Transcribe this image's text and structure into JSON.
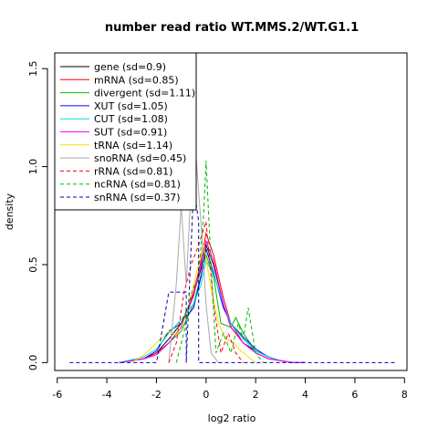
{
  "chart_data": {
    "type": "line",
    "title": "number read ratio WT.MMS.2/WT.G1.1",
    "xlabel": "log2 ratio",
    "ylabel": "density",
    "xlim": [
      -6.1,
      8.1
    ],
    "ylim": [
      -0.04,
      1.58
    ],
    "xticks": [
      -6,
      -4,
      -2,
      0,
      2,
      4,
      6,
      8
    ],
    "yticks": [
      0.0,
      0.5,
      1.0,
      1.5
    ],
    "ytick_labels": [
      "0.0",
      "0.5",
      "1.0",
      "1.5"
    ],
    "legend_position": "top-left",
    "series": [
      {
        "name": "gene (sd=0.9)",
        "color": "#000000",
        "dash": "solid",
        "x": [
          -3.5,
          -2.5,
          -2,
          -1.5,
          -1,
          -0.5,
          -0.2,
          0,
          0.3,
          0.7,
          1,
          1.5,
          2,
          2.5,
          3,
          3.5,
          4
        ],
        "y": [
          0,
          0.02,
          0.05,
          0.12,
          0.2,
          0.35,
          0.48,
          0.6,
          0.5,
          0.3,
          0.18,
          0.1,
          0.06,
          0.03,
          0.01,
          0,
          0
        ]
      },
      {
        "name": "mRNA (sd=0.85)",
        "color": "#ff0000",
        "dash": "solid",
        "x": [
          -3.5,
          -2.5,
          -2,
          -1.5,
          -1,
          -0.5,
          -0.2,
          0,
          0.3,
          0.7,
          1,
          1.5,
          2,
          2.5,
          3,
          3.5,
          4
        ],
        "y": [
          0,
          0.02,
          0.05,
          0.1,
          0.18,
          0.36,
          0.52,
          0.66,
          0.55,
          0.33,
          0.2,
          0.1,
          0.05,
          0.02,
          0.01,
          0,
          0
        ]
      },
      {
        "name": "divergent (sd=1.11)",
        "color": "#00bb00",
        "dash": "solid",
        "x": [
          -3.5,
          -2.5,
          -2,
          -1.5,
          -1,
          -0.5,
          -0.2,
          0,
          0.3,
          0.6,
          1,
          1.2,
          1.5,
          2,
          2.5,
          3,
          3.5,
          4
        ],
        "y": [
          0,
          0.02,
          0.04,
          0.1,
          0.16,
          0.3,
          0.45,
          0.55,
          0.44,
          0.2,
          0.18,
          0.23,
          0.15,
          0.06,
          0.03,
          0.01,
          0,
          0
        ]
      },
      {
        "name": "XUT (sd=1.05)",
        "color": "#0000ff",
        "dash": "solid",
        "x": [
          -3.5,
          -2.5,
          -2,
          -1.5,
          -1,
          -0.5,
          -0.2,
          0,
          0.3,
          0.7,
          1,
          1.5,
          2,
          2.5,
          3,
          3.5,
          4
        ],
        "y": [
          0,
          0.02,
          0.06,
          0.16,
          0.2,
          0.28,
          0.44,
          0.58,
          0.46,
          0.28,
          0.2,
          0.13,
          0.07,
          0.03,
          0.01,
          0,
          0
        ]
      },
      {
        "name": "CUT (sd=1.08)",
        "color": "#00dddd",
        "dash": "solid",
        "x": [
          -3.5,
          -2.5,
          -2,
          -1.5,
          -1,
          -0.5,
          -0.2,
          0,
          0.3,
          0.7,
          1,
          1.5,
          2,
          2.5,
          3,
          3.5,
          4
        ],
        "y": [
          0,
          0.03,
          0.07,
          0.15,
          0.22,
          0.3,
          0.4,
          0.52,
          0.45,
          0.3,
          0.2,
          0.12,
          0.06,
          0.03,
          0.01,
          0,
          0
        ]
      },
      {
        "name": "SUT (sd=0.91)",
        "color": "#ff00ff",
        "dash": "solid",
        "x": [
          -3.5,
          -2.5,
          -2,
          -1.5,
          -1,
          -0.5,
          -0.2,
          0,
          0.3,
          0.7,
          1,
          1.5,
          2,
          2.5,
          3,
          3.5,
          4
        ],
        "y": [
          0,
          0.02,
          0.04,
          0.1,
          0.18,
          0.34,
          0.5,
          0.62,
          0.52,
          0.3,
          0.18,
          0.1,
          0.05,
          0.02,
          0.01,
          0,
          0
        ]
      },
      {
        "name": "tRNA (sd=1.14)",
        "color": "#ffdd00",
        "dash": "solid",
        "x": [
          -3,
          -2.5,
          -2,
          -1.5,
          -1.2,
          -0.8,
          -0.4,
          -0.1,
          0.2,
          0.5,
          0.8,
          1.1,
          1.4,
          2
        ],
        "y": [
          0,
          0.04,
          0.1,
          0.16,
          0.14,
          0.24,
          0.45,
          0.6,
          0.38,
          0.2,
          0.12,
          0.1,
          0.06,
          0
        ]
      },
      {
        "name": "snoRNA (sd=0.45)",
        "color": "#aaaaaa",
        "dash": "solid",
        "x": [
          -1.5,
          -1.2,
          -1,
          -0.8,
          -0.6,
          -0.4,
          -0.2,
          0,
          0.2,
          0.5
        ],
        "y": [
          0,
          0.4,
          0.8,
          0.4,
          0.9,
          1.05,
          0.7,
          0.3,
          0.05,
          0
        ]
      },
      {
        "name": "rRNA (sd=0.81)",
        "color": "#ff0000",
        "dash": "dash",
        "x": [
          -1.5,
          -1.2,
          -0.9,
          -0.6,
          -0.3,
          0,
          0.3,
          0.6,
          0.9,
          1.2,
          1.5
        ],
        "y": [
          0,
          0.1,
          0.35,
          0.5,
          0.6,
          0.72,
          0.3,
          0.05,
          0.15,
          0.05,
          0
        ]
      },
      {
        "name": "ncRNA (sd=0.81)",
        "color": "#00bb00",
        "dash": "dash",
        "x": [
          -1.2,
          -0.9,
          -0.6,
          -0.3,
          -0.1,
          0,
          0.2,
          0.4,
          0.7,
          1,
          1.3,
          1.5,
          1.7,
          2,
          2.3
        ],
        "y": [
          0,
          0.15,
          0.35,
          0.45,
          0.75,
          1.03,
          0.5,
          0.05,
          0.15,
          0.05,
          0.2,
          0.12,
          0.28,
          0.05,
          0
        ]
      },
      {
        "name": "snRNA (sd=0.37)",
        "color": "#0000aa",
        "dash": "dash",
        "x": [
          -5.5,
          -2,
          -1.5,
          -0.8,
          -0.8,
          -0.5,
          -0.3,
          -0.3,
          0.3,
          7.7
        ],
        "y": [
          0,
          0,
          0.36,
          0.36,
          0,
          0.9,
          0.72,
          0,
          0,
          0
        ]
      }
    ]
  }
}
